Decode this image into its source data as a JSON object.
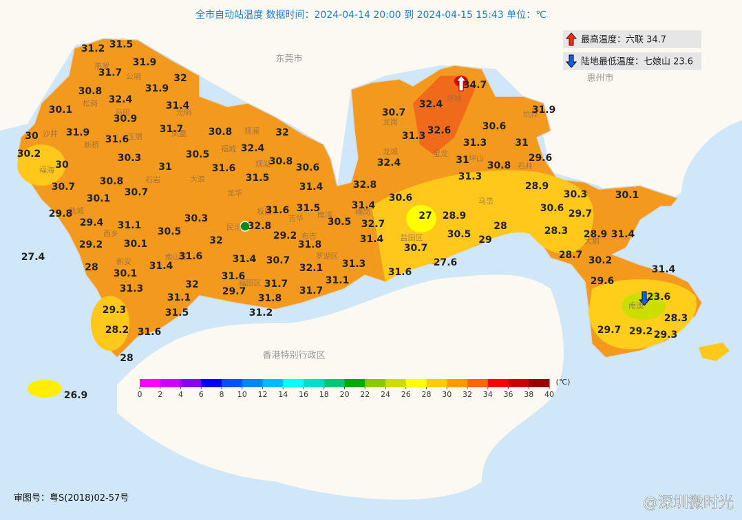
{
  "header": {
    "title": "全市自动站温度  数据时间：2024-04-14 20:00 到 2024-04-15 15:43  单位：℃"
  },
  "extremes": {
    "max": "最高温度：六联 34.7",
    "min": "陆地最低温度：七娘山 23.6"
  },
  "regions": [
    "东莞市",
    "惠州市",
    "香港特别行政区"
  ],
  "districts": [
    "燕罗",
    "公明",
    "松岗",
    "马田",
    "光明",
    "沙井",
    "新桥",
    "玉塘",
    "凤凰",
    "观澜",
    "福城",
    "观湖",
    "福海",
    "石岩",
    "大浪",
    "龙华",
    "航城",
    "西乡",
    "新安",
    "民治",
    "坂田",
    "吉华",
    "南湾",
    "布吉",
    "罗湖区",
    "南山区",
    "福田区",
    "龙岗",
    "坪地",
    "宝龙",
    "坑梓",
    "龙城",
    "坪山",
    "石井",
    "横岗",
    "马峦",
    "盐田区",
    "大鹏",
    "南澳"
  ],
  "stations": [
    31.2,
    31.5,
    31.9,
    31.7,
    32,
    30.8,
    31.9,
    32.4,
    30.1,
    31.4,
    30.9,
    30,
    31.9,
    31.6,
    31.7,
    30.8,
    32,
    30.2,
    30,
    30.3,
    30.5,
    32.4,
    31.6,
    31,
    30.8,
    30.6,
    30.7,
    30.8,
    31.5,
    31.4,
    32.8,
    30.1,
    30.7,
    29.8,
    29.4,
    31.1,
    30.3,
    31.6,
    31.5,
    30.5,
    31.4,
    30.5,
    32.8,
    32.7,
    29.2,
    32,
    29.2,
    30.1,
    31.8,
    31.4,
    27.4,
    31.6,
    31.4,
    30.7,
    28,
    31.4,
    30.1,
    32.1,
    31.3,
    31.6,
    31.1,
    31.6,
    32,
    31.7,
    31.3,
    29.7,
    31.7,
    31.1,
    31.8,
    29.3,
    31.5,
    31.2,
    28.2,
    31.6,
    28,
    26.9,
    30.7,
    32.4,
    31.3,
    32.6,
    34.7,
    31.9,
    30.6,
    31.3,
    31,
    32.4,
    31,
    30.8,
    29.6,
    31.3,
    28.9,
    30.6,
    30.3,
    30.1,
    30.6,
    27,
    28.9,
    29.7,
    28,
    28.3,
    30.5,
    29,
    28.9,
    31.4,
    30.7,
    28.7,
    27.6,
    30.2,
    31.4,
    29.6,
    23.6,
    28.3,
    29.7,
    29.2,
    29.3
  ],
  "colorbar": {
    "ticks": [
      0,
      2,
      4,
      6,
      8,
      10,
      12,
      14,
      16,
      18,
      20,
      22,
      24,
      26,
      28,
      30,
      32,
      34,
      36,
      38,
      40
    ],
    "colors": [
      "#ff00ff",
      "#cc00ff",
      "#8a00ee",
      "#0000ff",
      "#0050ff",
      "#0088ee",
      "#00bbff",
      "#00ffff",
      "#00ddcc",
      "#00c878",
      "#00aa00",
      "#88cc00",
      "#ccdd00",
      "#ffff00",
      "#ffcc00",
      "#ff9900",
      "#ff6600",
      "#ff0000",
      "#cc0000",
      "#990000"
    ],
    "unit": "(℃)"
  },
  "footer": {
    "approval": "审图号：粤S(2018)02-57号",
    "watermark": "@深圳微时光"
  }
}
